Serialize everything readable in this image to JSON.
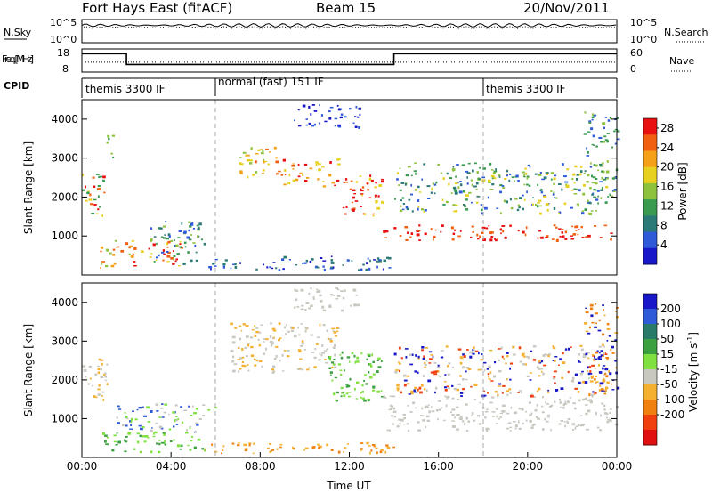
{
  "header": {
    "site": "Fort Hays East (fitACF)",
    "beam": "Beam 15",
    "date": "20/Nov/2011"
  },
  "colors": {
    "power": [
      "#1818c8",
      "#2f5ad8",
      "#2c7a78",
      "#3a9a50",
      "#8ec23c",
      "#e8d020",
      "#f4a018",
      "#f06010",
      "#e81010"
    ],
    "velocity": [
      "#1818c8",
      "#2f5ad8",
      "#2a7a6a",
      "#3aa040",
      "#80e040",
      "#c8c8c0",
      "#f4b030",
      "#f08010",
      "#f04010",
      "#e01010"
    ]
  },
  "chart_data": [
    {
      "type": "line",
      "panel": "noise",
      "ylabel_left": "N.Sky",
      "ylabel_right": "N.Search",
      "y_ticks_left": [
        "10^5",
        "10^0"
      ],
      "y_ticks_right": [
        "10^5",
        "10^0"
      ]
    },
    {
      "type": "line",
      "panel": "frequency",
      "ylabel_left": "Freq. [MHz]",
      "ylabel_right": "Nave",
      "y_ticks_left": [
        "18",
        "8"
      ],
      "y_ticks_right": [
        "60",
        "0"
      ],
      "frequency_steps": [
        {
          "from_hour": 0,
          "to_hour": 2,
          "value": 16.5
        },
        {
          "from_hour": 2,
          "to_hour": 14,
          "value": 11
        },
        {
          "from_hour": 14,
          "to_hour": 24,
          "value": 16.5
        }
      ],
      "nave": 25,
      "xlim_hours": [
        0,
        24
      ]
    },
    {
      "type": "table",
      "panel": "cpid",
      "label": "CPID",
      "segments": [
        {
          "start_hour": 0,
          "name": "themis 3300 IF"
        },
        {
          "start_hour": 6,
          "name": "normal (fast) 151 IF"
        },
        {
          "start_hour": 18,
          "name": "themis 3300 IF"
        }
      ]
    },
    {
      "type": "heatmap",
      "panel": "power",
      "ylabel": "Slant Range [km]",
      "ylim": [
        0,
        4500
      ],
      "y_ticks": [
        1000,
        2000,
        3000,
        4000
      ],
      "xlim_hours": [
        0,
        24
      ],
      "x_ticks": [
        "00:00",
        "04:00",
        "08:00",
        "12:00",
        "16:00",
        "20:00",
        "00:00"
      ],
      "colorbar_label": "Power [dB]",
      "colorbar_ticks": [
        4,
        8,
        12,
        16,
        20,
        24,
        28
      ],
      "colorbar_range": [
        0,
        30
      ]
    },
    {
      "type": "heatmap",
      "panel": "velocity",
      "ylabel": "Slant Range [km]",
      "ylim": [
        0,
        4500
      ],
      "y_ticks": [
        1000,
        2000,
        3000,
        4000
      ],
      "xlim_hours": [
        0,
        24
      ],
      "x_ticks": [
        "00:00",
        "04:00",
        "08:00",
        "12:00",
        "16:00",
        "20:00",
        "00:00"
      ],
      "xlabel": "Time UT",
      "colorbar_label": "Velocity [m s^-1]",
      "colorbar_ticks": [
        200,
        100,
        50,
        15,
        -15,
        -50,
        -100,
        -200
      ]
    }
  ]
}
